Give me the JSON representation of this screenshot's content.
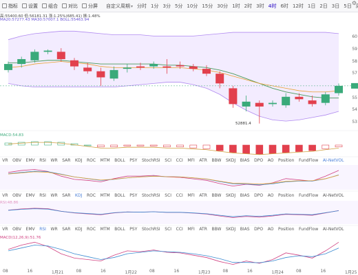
{
  "toolbar": {
    "items": [
      {
        "label": "指标",
        "icon": "indicator-icon"
      },
      {
        "label": "设置",
        "icon": "gear-icon"
      },
      {
        "label": "组合",
        "icon": "combine-icon"
      },
      {
        "label": "对比",
        "icon": "compare-icon"
      },
      {
        "label": "分屏",
        "icon": "split-screen-icon"
      }
    ],
    "custom_period": "自定义周期",
    "timeframes": [
      "分时",
      "1分",
      "3分",
      "5分",
      "10分",
      "15分",
      "30分",
      "1时",
      "2时",
      "3时",
      "4时",
      "6时",
      "12时",
      "1日",
      "2日",
      "3日",
      "5日",
      "周K",
      "月K"
    ],
    "active_timeframe": "4时",
    "right_btn": "K线"
  },
  "info": {
    "price_line": "高:55400.60 低:56181.31 涨:1.25%(685.41) 振:1.48%",
    "ma_line": "MA20:57277.43 MA30:57007.1 BOLL:55463.94",
    "macd_line": "MACD:54.83",
    "rsi_line": "RSI:48.86",
    "kdj_line": "MACD(12,26,9):51.76",
    "annotation_price": "52881.4"
  },
  "y_labels": [
    "60",
    "59",
    "58",
    "57",
    "56",
    "55",
    "54",
    "53"
  ],
  "tabs": [
    "VR",
    "OBV",
    "EMV",
    "RSI",
    "WR",
    "SAR",
    "KDJ",
    "ROC",
    "MTM",
    "BOLL",
    "PSY",
    "StochRSI",
    "SCI",
    "CCI",
    "MFI",
    "ATR",
    "BBW",
    "SKDJ",
    "BIAS",
    "DPO",
    "AO",
    "Position",
    "FundFlow",
    "AI-NetVOL",
    "LSUR",
    "BASIS",
    "TVolume",
    "FTBS",
    "TTSI",
    "TTMU"
  ],
  "tab_rows_active": [
    "AI-NetVOL",
    "KDJ",
    "RSI",
    "StochRSI"
  ],
  "x_labels": [
    {
      "t": "08"
    },
    {
      "t": "16"
    },
    {
      "t": "1月21"
    },
    {
      "t": "08"
    },
    {
      "t": "16"
    },
    {
      "t": "1月22"
    },
    {
      "t": "08"
    },
    {
      "t": "16"
    },
    {
      "t": "1月23"
    },
    {
      "t": "08"
    },
    {
      "t": "16"
    },
    {
      "t": "1月24"
    },
    {
      "t": "08"
    },
    {
      "t": "16"
    },
    {
      "t": "1月25"
    }
  ],
  "colors": {
    "up": "#3aaa7a",
    "down": "#e2404d",
    "accent": "#6a55d6",
    "band": "#e9dcff"
  },
  "chart_data": {
    "type": "candlestick",
    "candles": [
      {
        "o": 57.3,
        "c": 57.8,
        "h": 58.0,
        "l": 57.1
      },
      {
        "o": 57.8,
        "c": 58.2,
        "h": 58.4,
        "l": 57.5
      },
      {
        "o": 58.1,
        "c": 58.8,
        "h": 59.0,
        "l": 57.9
      },
      {
        "o": 58.8,
        "c": 58.9,
        "h": 59.0,
        "l": 58.6
      },
      {
        "o": 58.8,
        "c": 58.2,
        "h": 59.1,
        "l": 58.0
      },
      {
        "o": 58.1,
        "c": 57.6,
        "h": 58.3,
        "l": 57.3
      },
      {
        "o": 57.5,
        "c": 57.2,
        "h": 57.9,
        "l": 57.0
      },
      {
        "o": 57.2,
        "c": 56.7,
        "h": 57.5,
        "l": 56.0
      },
      {
        "o": 56.6,
        "c": 57.3,
        "h": 57.6,
        "l": 56.4
      },
      {
        "o": 57.4,
        "c": 57.5,
        "h": 57.8,
        "l": 57.1
      },
      {
        "o": 57.6,
        "c": 57.5,
        "h": 57.9,
        "l": 57.3
      },
      {
        "o": 57.6,
        "c": 57.8,
        "h": 58.0,
        "l": 57.4
      },
      {
        "o": 57.6,
        "c": 57.5,
        "h": 58.2,
        "l": 57.0
      },
      {
        "o": 57.7,
        "c": 57.6,
        "h": 58.0,
        "l": 57.4
      },
      {
        "o": 57.6,
        "c": 57.4,
        "h": 57.8,
        "l": 57.2
      },
      {
        "o": 57.4,
        "c": 57.0,
        "h": 57.7,
        "l": 56.8
      },
      {
        "o": 57.0,
        "c": 56.2,
        "h": 57.2,
        "l": 55.8
      },
      {
        "o": 55.8,
        "c": 54.5,
        "h": 56.0,
        "l": 54.2
      },
      {
        "o": 54.3,
        "c": 54.7,
        "h": 55.2,
        "l": 53.9
      },
      {
        "o": 54.6,
        "c": 54.3,
        "h": 54.8,
        "l": 52.9
      },
      {
        "o": 54.5,
        "c": 54.6,
        "h": 54.8,
        "l": 54.3
      },
      {
        "o": 54.4,
        "c": 55.1,
        "h": 55.4,
        "l": 54.2
      },
      {
        "o": 55.1,
        "c": 54.9,
        "h": 55.4,
        "l": 54.7
      },
      {
        "o": 54.8,
        "c": 54.5,
        "h": 55.2,
        "l": 54.3
      },
      {
        "o": 54.6,
        "c": 55.3,
        "h": 55.5,
        "l": 54.4
      },
      {
        "o": 55.4,
        "c": 56.0,
        "h": 56.2,
        "l": 55.2
      }
    ],
    "y_range": [
      52.6,
      60.8
    ],
    "ma": [
      57.9,
      57.9,
      58.0,
      58.1,
      58.1,
      58.0,
      57.9,
      57.8,
      57.8,
      57.8,
      57.8,
      57.8,
      57.7,
      57.7,
      57.6,
      57.5,
      57.3,
      57.0,
      56.6,
      56.2,
      55.8,
      55.5,
      55.3,
      55.1,
      55.0,
      55.0
    ],
    "ma2": [
      57.5,
      57.6,
      57.8,
      57.9,
      58.0,
      57.9,
      57.8,
      57.6,
      57.5,
      57.5,
      57.5,
      57.5,
      57.5,
      57.5,
      57.4,
      57.3,
      57.1,
      56.8,
      56.5,
      56.2,
      56.0,
      55.8,
      55.6,
      55.5,
      55.5,
      55.6
    ],
    "boll_upper": [
      59.8,
      60.1,
      60.3,
      60.4,
      60.5,
      60.5,
      60.4,
      60.3,
      60.2,
      60.2,
      60.2,
      60.1,
      60.1,
      60.1,
      60.1,
      60.2,
      60.3,
      60.4,
      60.4,
      60.4,
      60.4,
      60.4,
      60.4,
      60.4,
      60.4,
      60.3
    ],
    "boll_lower": [
      56.2,
      56.0,
      55.9,
      55.9,
      55.9,
      55.9,
      55.9,
      55.9,
      55.9,
      56.0,
      56.1,
      56.2,
      56.3,
      56.3,
      56.1,
      55.8,
      55.3,
      54.6,
      54.0,
      53.5,
      53.2,
      53.1,
      53.2,
      53.4,
      53.6,
      53.9
    ],
    "macd": [
      0.3,
      0.4,
      0.5,
      0.5,
      0.4,
      0.2,
      0.0,
      -0.2,
      -0.2,
      -0.1,
      -0.1,
      -0.1,
      -0.2,
      -0.2,
      -0.3,
      -0.4,
      -0.6,
      -0.8,
      -0.9,
      -1.0,
      -0.9,
      -0.8,
      -0.7,
      -0.6,
      -0.4,
      -0.2
    ],
    "rsi": [
      60,
      65,
      68,
      66,
      55,
      48,
      44,
      40,
      48,
      52,
      51,
      53,
      50,
      50,
      47,
      43,
      35,
      28,
      33,
      30,
      35,
      42,
      40,
      38,
      48,
      58
    ],
    "kdj_k": [
      70,
      78,
      82,
      74,
      55,
      42,
      38,
      32,
      45,
      55,
      55,
      58,
      52,
      50,
      44,
      38,
      25,
      15,
      22,
      18,
      28,
      45,
      40,
      35,
      55,
      78
    ],
    "kdj_d": [
      65,
      70,
      75,
      73,
      63,
      52,
      45,
      38,
      42,
      48,
      52,
      55,
      53,
      52,
      48,
      43,
      33,
      24,
      23,
      20,
      24,
      32,
      35,
      35,
      44,
      60
    ],
    "stoch_k": [
      60,
      75,
      85,
      70,
      45,
      30,
      25,
      20,
      40,
      55,
      52,
      58,
      50,
      48,
      40,
      32,
      18,
      8,
      20,
      12,
      25,
      48,
      40,
      30,
      55,
      85
    ],
    "stoch_d": [
      55,
      65,
      75,
      72,
      60,
      45,
      35,
      25,
      32,
      45,
      50,
      55,
      52,
      50,
      45,
      38,
      28,
      15,
      15,
      14,
      20,
      32,
      38,
      35,
      45,
      65
    ]
  }
}
